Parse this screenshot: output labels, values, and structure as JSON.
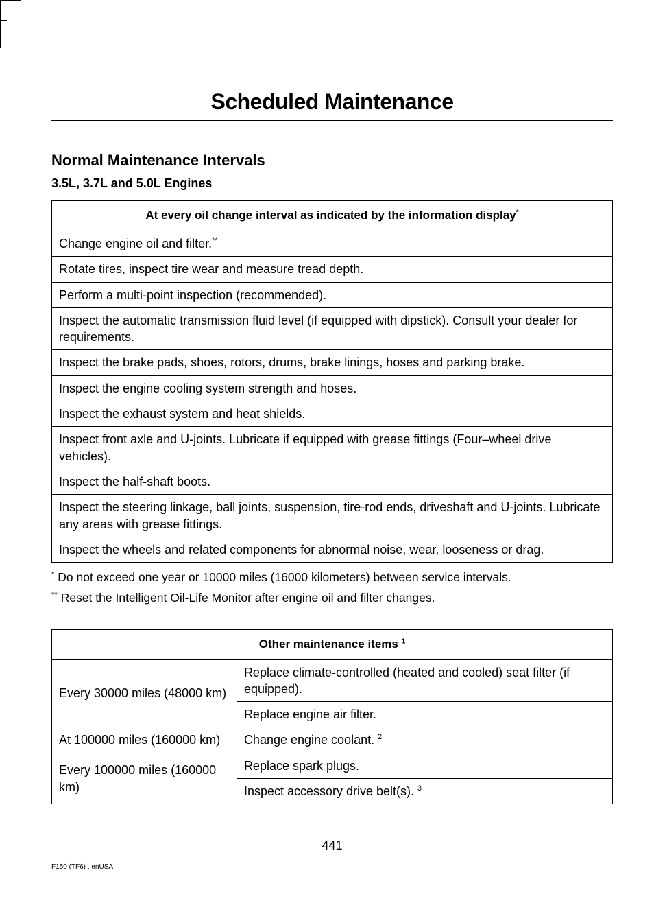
{
  "page": {
    "title": "Scheduled Maintenance",
    "number": "441",
    "footer_code": "F150 (TF6) , enUSA"
  },
  "section": {
    "heading": "Normal Maintenance Intervals",
    "subheading": "3.5L, 3.7L and 5.0L Engines"
  },
  "table1": {
    "header": "At every oil change interval as indicated by the information display",
    "header_sup": "*",
    "rows": [
      {
        "text": "Change engine oil and filter.",
        "sup": "**"
      },
      {
        "text": "Rotate tires, inspect tire wear and measure tread depth."
      },
      {
        "text": "Perform a multi-point inspection (recommended)."
      },
      {
        "text": "Inspect the automatic transmission fluid level (if equipped with dipstick). Consult your dealer for requirements."
      },
      {
        "text": "Inspect the brake pads, shoes, rotors, drums, brake linings, hoses and parking brake."
      },
      {
        "text": "Inspect the engine cooling system strength and hoses."
      },
      {
        "text": "Inspect the exhaust system and heat shields."
      },
      {
        "text": "Inspect front axle and U-joints. Lubricate if equipped with grease fittings (Four–wheel drive vehicles)."
      },
      {
        "text": "Inspect the half-shaft boots."
      },
      {
        "text": "Inspect the steering linkage, ball joints, suspension, tire-rod ends, driveshaft and U-joints. Lubricate any areas with grease fittings."
      },
      {
        "text": "Inspect the wheels and related components for abnormal noise, wear, looseness or drag."
      }
    ]
  },
  "footnotes1": [
    {
      "sup": "*",
      "text": " Do not exceed one year or 10000 miles (16000 kilometers) between service intervals."
    },
    {
      "sup": "**",
      "text": " Reset the Intelligent Oil-Life Monitor after engine oil and filter changes."
    }
  ],
  "table2": {
    "header": "Other maintenance items",
    "header_sup": "1",
    "rows": [
      {
        "interval": "Every 30000 miles (48000 km)",
        "rowspan": 2,
        "task": "Replace climate-controlled (heated and cooled) seat filter (if equipped)."
      },
      {
        "task": "Replace engine air filter."
      },
      {
        "interval": "At 100000 miles (160000 km)",
        "rowspan": 1,
        "task": "Change engine coolant.",
        "task_sup": "2"
      },
      {
        "interval": "Every 100000 miles (160000 km)",
        "rowspan": 2,
        "task": "Replace spark plugs."
      },
      {
        "task": "Inspect accessory drive belt(s).",
        "task_sup": "3"
      }
    ]
  },
  "styling": {
    "body_font": "Arial, Helvetica, sans-serif",
    "text_color": "#000000",
    "background_color": "#ffffff",
    "border_color": "#000000",
    "page_title_fontsize": 32,
    "page_title_fontweight": 900,
    "section_heading_fontsize": 22,
    "sub_heading_fontsize": 18,
    "table_header_fontsize": 17,
    "cell_fontsize": 18,
    "footnote_fontsize": 17.5,
    "footer_code_fontsize": 10,
    "page_number_fontsize": 18,
    "table_border_width": 1,
    "title_underline_width": 2,
    "col_left_width_pct": 33
  }
}
